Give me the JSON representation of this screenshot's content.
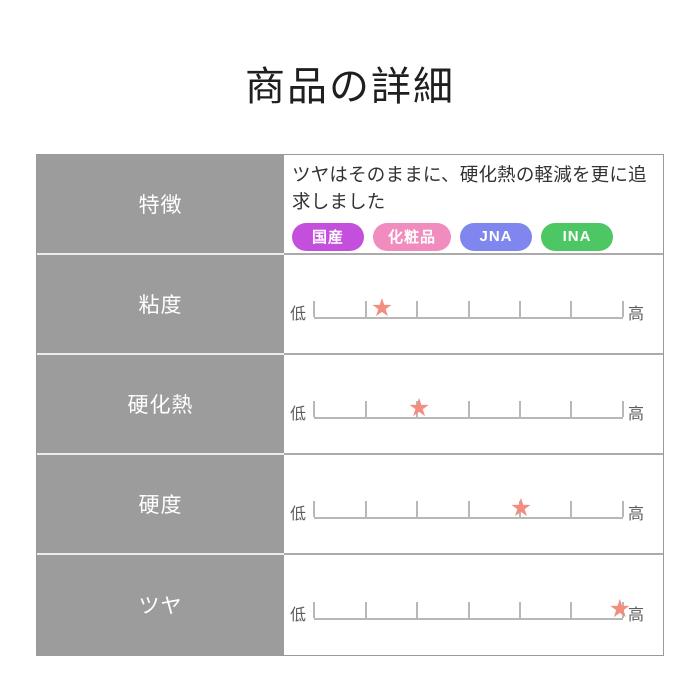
{
  "page": {
    "title": "商品の詳細"
  },
  "icons": {
    "star": "★"
  },
  "colors": {
    "header_column_bg": "#9c9c9c",
    "header_text": "#ffffff",
    "scale_line": "#b8b8b8",
    "star": "#f28e7f",
    "table_border": "#9a9a9a"
  },
  "table": {
    "rows": [
      {
        "label": "特徴",
        "description": "ツヤはそのままに、硬化熱の軽減を更に追求しました",
        "badges": [
          {
            "label": "国産",
            "color": "#c44fdd"
          },
          {
            "label": "化粧品",
            "color": "#f08cbe"
          },
          {
            "label": "JNA",
            "color": "#7f86ee"
          },
          {
            "label": "INA",
            "color": "#4dc763"
          }
        ]
      },
      {
        "label": "粘度",
        "low_label": "低",
        "high_label": "高",
        "star_pct": 22,
        "level": "1 / 6"
      },
      {
        "label": "硬化熱",
        "low_label": "低",
        "high_label": "高",
        "star_pct": 34,
        "level": "2 / 6"
      },
      {
        "label": "硬度",
        "low_label": "低",
        "high_label": "高",
        "star_pct": 67,
        "level": "4 / 6"
      },
      {
        "label": "ツヤ",
        "low_label": "低",
        "high_label": "高",
        "star_pct": 99,
        "level": "6 / 6"
      }
    ]
  },
  "chart_data": {
    "type": "table",
    "title": "商品の詳細",
    "feature_text": "ツヤはそのままに、硬化熱の軽減を更に追求しました",
    "feature_badges": [
      "国産",
      "化粧品",
      "JNA",
      "INA"
    ],
    "scale": {
      "min_label": "低",
      "max_label": "高",
      "tick_count": 7,
      "intervals": 6
    },
    "marker": "star",
    "ratings": [
      {
        "category": "粘度",
        "value": 1,
        "max": 6,
        "position_pct": 22
      },
      {
        "category": "硬化熱",
        "value": 2,
        "max": 6,
        "position_pct": 34
      },
      {
        "category": "硬度",
        "value": 4,
        "max": 6,
        "position_pct": 67
      },
      {
        "category": "ツヤ",
        "value": 6,
        "max": 6,
        "position_pct": 99
      }
    ]
  }
}
